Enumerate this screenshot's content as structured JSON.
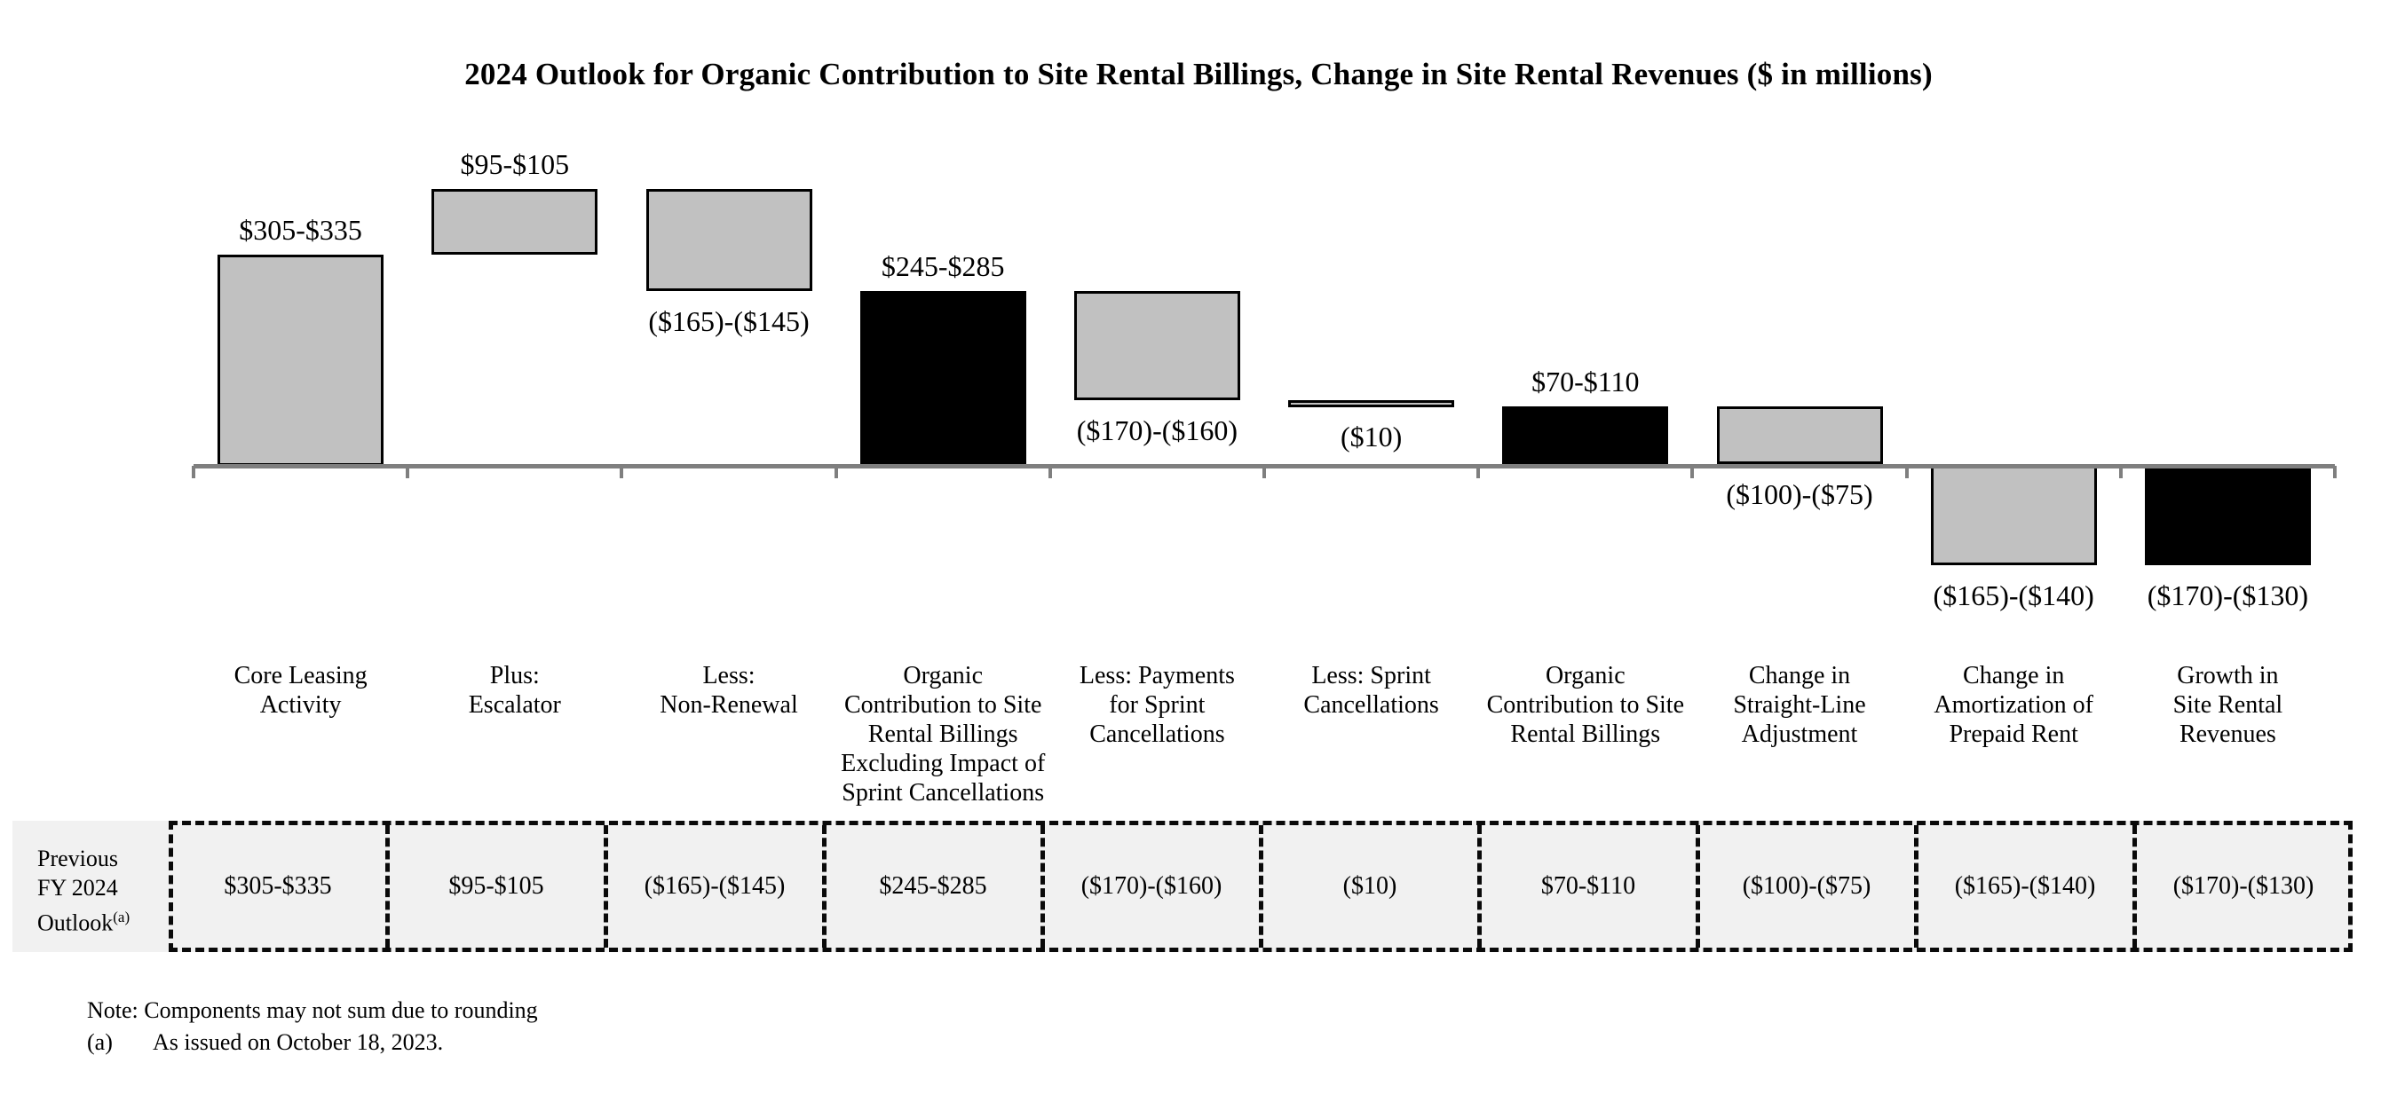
{
  "title": "2024 Outlook for Organic Contribution to Site Rental Billings, Change in Site Rental Revenues ($ in millions)",
  "chart_data": {
    "type": "bar",
    "subtype": "waterfall",
    "units": "$ in millions",
    "title": "2024 Outlook for Organic Contribution to Site Rental Billings, Change in Site Rental Revenues ($ in millions)",
    "xlabel": "",
    "ylabel": "",
    "grid": false,
    "legend": "none",
    "baseline_value": 0,
    "bar_colors": {
      "component": "#c1c1c1",
      "subtotal": "#000000"
    },
    "bars": [
      {
        "category_lines": [
          "Core Leasing",
          "Activity"
        ],
        "value_label": "$305-$335",
        "value_range": [
          305,
          335
        ],
        "start": 0,
        "end": 320,
        "color": "gray",
        "label_position": "above"
      },
      {
        "category_lines": [
          "Plus:",
          "Escalator"
        ],
        "value_label": "$95-$105",
        "value_range": [
          95,
          105
        ],
        "start": 320,
        "end": 420,
        "color": "gray",
        "label_position": "above"
      },
      {
        "category_lines": [
          "Less:",
          "Non-Renewal"
        ],
        "value_label": "($165)-($145)",
        "value_range": [
          -165,
          -145
        ],
        "start": 420,
        "end": 265,
        "color": "gray",
        "label_position": "below"
      },
      {
        "category_lines": [
          "Organic",
          "Contribution to Site",
          "Rental Billings",
          "Excluding Impact of",
          "Sprint Cancellations"
        ],
        "value_label": "$245-$285",
        "value_range": [
          245,
          285
        ],
        "start": 0,
        "end": 265,
        "color": "black",
        "label_position": "above"
      },
      {
        "category_lines": [
          "Less: Payments",
          "for Sprint",
          "Cancellations"
        ],
        "value_label": "($170)-($160)",
        "value_range": [
          -170,
          -160
        ],
        "start": 265,
        "end": 100,
        "color": "gray",
        "label_position": "below"
      },
      {
        "category_lines": [
          "Less: Sprint",
          "Cancellations"
        ],
        "value_label": "($10)",
        "value_range": [
          -10,
          -10
        ],
        "start": 100,
        "end": 90,
        "color": "gray",
        "label_position": "below"
      },
      {
        "category_lines": [
          "Organic",
          "Contribution to Site",
          "Rental Billings"
        ],
        "value_label": "$70-$110",
        "value_range": [
          70,
          110
        ],
        "start": 0,
        "end": 90,
        "color": "black",
        "label_position": "above"
      },
      {
        "category_lines": [
          "Change in",
          "Straight-Line",
          "Adjustment"
        ],
        "value_label": "($100)-($75)",
        "value_range": [
          -100,
          -75
        ],
        "start": 90,
        "end": 2.5,
        "color": "gray",
        "label_position": "below"
      },
      {
        "category_lines": [
          "Change in",
          "Amortization of",
          "Prepaid Rent"
        ],
        "value_label": "($165)-($140)",
        "value_range": [
          -165,
          -140
        ],
        "start": 2.5,
        "end": -150,
        "color": "gray",
        "label_position": "below"
      },
      {
        "category_lines": [
          "Growth in",
          "Site Rental",
          "Revenues"
        ],
        "value_label": "($170)-($130)",
        "value_range": [
          -170,
          -130
        ],
        "start": 0,
        "end": -150,
        "color": "black",
        "label_position": "below"
      }
    ]
  },
  "table": {
    "row_header_lines": [
      "Previous",
      "FY 2024",
      "Outlook"
    ],
    "row_header_superscript": "(a)",
    "values": [
      "$305-$335",
      "$95-$105",
      "($165)-($145)",
      "$245-$285",
      "($170)-($160)",
      "($10)",
      "$70-$110",
      "($100)-($75)",
      "($165)-($140)",
      "($170)-($130)"
    ]
  },
  "notes": {
    "note": "Note: Components may not sum due to rounding",
    "footnote_marker": "(a)",
    "footnote_text": "As issued on October 18, 2023."
  }
}
